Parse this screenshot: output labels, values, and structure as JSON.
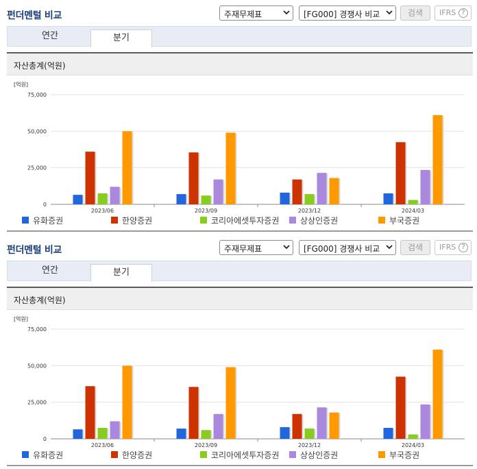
{
  "panels": [
    {
      "header": {
        "title": "펀더멘털 비교",
        "statement_select": "주재무제표",
        "peer_select": "[FG000] 경쟁사 비교",
        "search_label": "검색",
        "ifrs_label": "IFRS",
        "help_glyph": "?"
      },
      "tabs": [
        {
          "label": "연간",
          "active": false
        },
        {
          "label": "분기",
          "active": true
        }
      ],
      "chart_title": "자산총계(억원)"
    },
    {
      "header": {
        "title": "펀더멘털 비교",
        "statement_select": "주재무제표",
        "peer_select": "[FG000] 경쟁사 비교",
        "search_label": "검색",
        "ifrs_label": "IFRS",
        "help_glyph": "?"
      },
      "tabs": [
        {
          "label": "연간",
          "active": false
        },
        {
          "label": "분기",
          "active": true
        }
      ],
      "chart_title": "자산총계(억원)"
    }
  ],
  "chart_data": [
    {
      "type": "bar",
      "title": "자산총계(억원)",
      "unit_label": "[억원]",
      "categories": [
        "2023/06",
        "2023/09",
        "2023/12",
        "2024/03"
      ],
      "ylim": [
        0,
        75000
      ],
      "yticks": [
        0,
        25000,
        50000,
        75000
      ],
      "ytick_labels": [
        "0",
        "25,000",
        "50,000",
        "75,000"
      ],
      "grid": true,
      "legend_position": "bottom",
      "series": [
        {
          "name": "유화증권",
          "color": "#2266dd",
          "values": [
            6500,
            7000,
            8000,
            7500
          ]
        },
        {
          "name": "한양증권",
          "color": "#cc3300",
          "values": [
            36000,
            35500,
            17000,
            42500
          ]
        },
        {
          "name": "코리아에셋투자증권",
          "color": "#88cc22",
          "values": [
            7500,
            6000,
            7000,
            3000
          ]
        },
        {
          "name": "상상인증권",
          "color": "#aa88dd",
          "values": [
            12000,
            17000,
            21500,
            23500
          ]
        },
        {
          "name": "부국증권",
          "color": "#ff9900",
          "values": [
            50000,
            49000,
            18000,
            61000
          ]
        }
      ]
    },
    {
      "type": "bar",
      "title": "자산총계(억원)",
      "unit_label": "[억원]",
      "categories": [
        "2023/06",
        "2023/09",
        "2023/12",
        "2024/03"
      ],
      "ylim": [
        0,
        75000
      ],
      "yticks": [
        0,
        25000,
        50000,
        75000
      ],
      "ytick_labels": [
        "0",
        "25,000",
        "50,000",
        "75,000"
      ],
      "grid": true,
      "legend_position": "bottom",
      "series": [
        {
          "name": "유화증권",
          "color": "#2266dd",
          "values": [
            6500,
            7000,
            8000,
            7500
          ]
        },
        {
          "name": "한양증권",
          "color": "#cc3300",
          "values": [
            36000,
            35500,
            17000,
            42500
          ]
        },
        {
          "name": "코리아에셋투자증권",
          "color": "#88cc22",
          "values": [
            7500,
            6000,
            7000,
            3000
          ]
        },
        {
          "name": "상상인증권",
          "color": "#aa88dd",
          "values": [
            12000,
            17000,
            21500,
            23500
          ]
        },
        {
          "name": "부국증권",
          "color": "#ff9900",
          "values": [
            50000,
            49000,
            18000,
            61000
          ]
        }
      ]
    }
  ]
}
